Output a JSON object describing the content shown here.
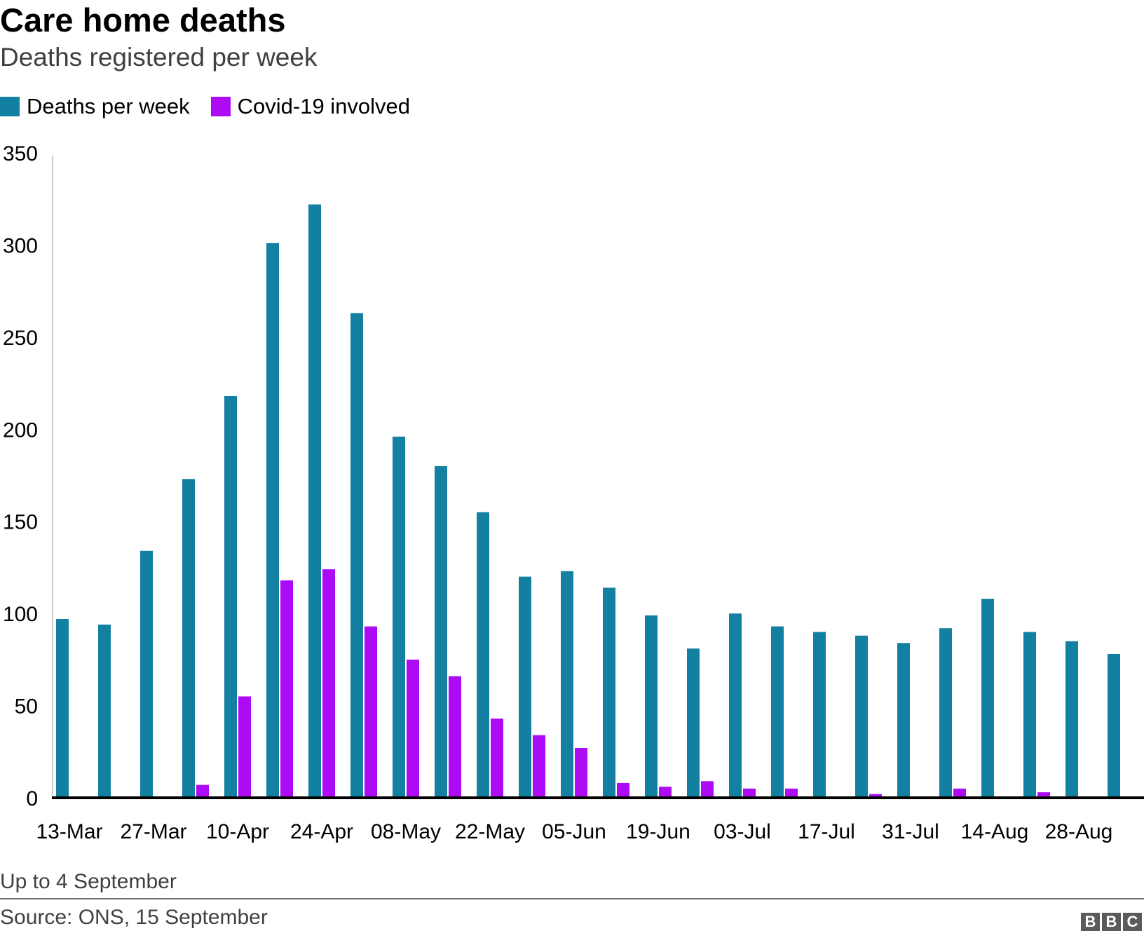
{
  "header": {
    "title": "Care home deaths",
    "subtitle": "Deaths registered per week"
  },
  "legend": [
    {
      "label": "Deaths per week",
      "color": "#1380A1"
    },
    {
      "label": "Covid-19 involved",
      "color": "#AD0BF5"
    }
  ],
  "chart_data": {
    "type": "bar",
    "title": "Care home deaths",
    "subtitle": "Deaths registered per week",
    "xlabel": "",
    "ylabel": "",
    "ylim": [
      0,
      350
    ],
    "yticks": [
      0,
      50,
      100,
      150,
      200,
      250,
      300,
      350
    ],
    "grid": false,
    "legend_position": "top-left",
    "categories": [
      "13-Mar",
      "20-Mar",
      "27-Mar",
      "03-Apr",
      "10-Apr",
      "17-Apr",
      "24-Apr",
      "01-May",
      "08-May",
      "15-May",
      "22-May",
      "29-May",
      "05-Jun",
      "12-Jun",
      "19-Jun",
      "26-Jun",
      "03-Jul",
      "10-Jul",
      "17-Jul",
      "24-Jul",
      "31-Jul",
      "07-Aug",
      "14-Aug",
      "21-Aug",
      "28-Aug",
      "04-Sep"
    ],
    "xtick_labels": [
      "13-Mar",
      "27-Mar",
      "10-Apr",
      "24-Apr",
      "08-May",
      "22-May",
      "05-Jun",
      "19-Jun",
      "03-Jul",
      "17-Jul",
      "31-Jul",
      "14-Aug",
      "28-Aug"
    ],
    "series": [
      {
        "name": "Deaths per week",
        "color": "#1380A1",
        "values": [
          97,
          94,
          134,
          173,
          218,
          301,
          322,
          263,
          196,
          180,
          155,
          120,
          123,
          114,
          99,
          81,
          100,
          93,
          90,
          88,
          84,
          92,
          108,
          90,
          85,
          78
        ]
      },
      {
        "name": "Covid-19 involved",
        "color": "#AD0BF5",
        "values": [
          0,
          0,
          0,
          7,
          55,
          118,
          124,
          93,
          75,
          66,
          43,
          34,
          27,
          8,
          6,
          9,
          5,
          5,
          0,
          2,
          0,
          5,
          0,
          3,
          0,
          0
        ]
      }
    ]
  },
  "footer": {
    "note": "Up to 4 September",
    "source": "Source: ONS, 15 September",
    "logo_text": [
      "B",
      "B",
      "C"
    ]
  }
}
